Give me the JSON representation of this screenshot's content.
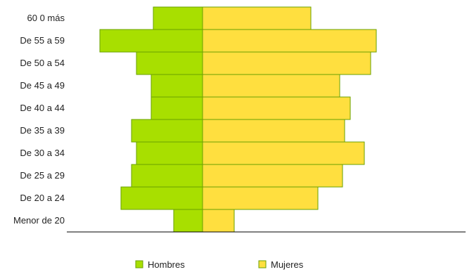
{
  "chart_data": {
    "type": "bar",
    "orientation": "horizontal",
    "layout": "population-pyramid",
    "categories": [
      "60 0 más",
      "De 55 a 59",
      "De 50 a  54",
      "De 45 a 49",
      "De 40 a 44",
      "De 35 a 39",
      "De 30 a 34",
      "De 25 a 29",
      "De 20 a 24",
      "Menor de 20"
    ],
    "series": [
      {
        "name": "Hombres",
        "color": "#a8df00",
        "direction": "left",
        "values": [
          70,
          146,
          94,
          73,
          73,
          101,
          94,
          101,
          116,
          41
        ]
      },
      {
        "name": "Mujeres",
        "color": "#ffdf3f",
        "direction": "right",
        "values": [
          154,
          247,
          239,
          195,
          210,
          202,
          230,
          199,
          164,
          45
        ]
      }
    ],
    "legend_position": "bottom",
    "grid": false,
    "bar_border_color": "#6aa200"
  }
}
